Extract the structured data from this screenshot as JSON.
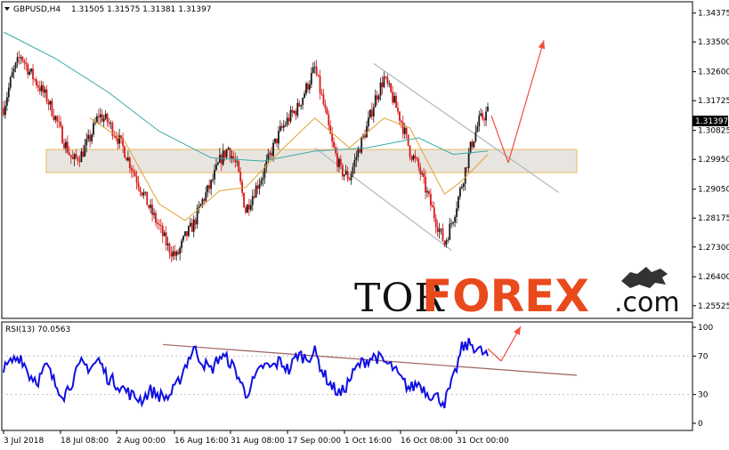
{
  "header": {
    "symbol": "GBPUSD,H4",
    "ohlc": "1.31505 1.31575 1.31381 1.31397",
    "arrow_icon": "triangle-down-icon"
  },
  "price_panel": {
    "current_price": "1.31397",
    "y_ticks": [
      "1.34375",
      "1.33500",
      "1.32600",
      "1.31725",
      "1.30825",
      "1.29950",
      "1.29050",
      "1.28175",
      "1.27300",
      "1.26400",
      "1.25525"
    ]
  },
  "rsi_panel": {
    "label": "RSI(13) 70.0563",
    "y_ticks": [
      "100",
      "70",
      "30",
      "0"
    ]
  },
  "x_axis": {
    "labels": [
      "3 Jul 2018",
      "18 Jul 08:00",
      "2 Aug 00:00",
      "16 Aug 16:00",
      "31 Aug 08:00",
      "17 Sep 00:00",
      "1 Oct 16:00",
      "16 Oct 08:00",
      "31 Oct 00:00"
    ]
  },
  "watermark": {
    "part1": "TOR",
    "part2": "FOREX",
    "part3": ".com"
  },
  "colors": {
    "candle_up": "#1a1a1a",
    "candle_down": "#d81818",
    "ma_fast": "#e0a030",
    "ma_slow": "#3aa9a9",
    "rsi": "#1010e0",
    "zone_fill": "#e4e1da",
    "zone_border": "#e8b860",
    "channel": "#aab8c4",
    "trend": "#a06060",
    "arrow": "#f05040",
    "grid": "#c0c0c0"
  },
  "chart_data": [
    {
      "type": "candlestick",
      "title": "GBPUSD,H4",
      "ylim": [
        1.2525,
        1.345
      ],
      "x_labels": [
        "3 Jul 2018",
        "18 Jul 08:00",
        "2 Aug 00:00",
        "16 Aug 16:00",
        "31 Aug 08:00",
        "17 Sep 00:00",
        "1 Oct 16:00",
        "16 Oct 08:00",
        "31 Oct 00:00"
      ],
      "last_close": 1.31397,
      "close_path": [
        {
          "x": 0,
          "y": 1.315
        },
        {
          "x": 5,
          "y": 1.325
        },
        {
          "x": 10,
          "y": 1.331
        },
        {
          "x": 15,
          "y": 1.326
        },
        {
          "x": 20,
          "y": 1.322
        },
        {
          "x": 25,
          "y": 1.318
        },
        {
          "x": 30,
          "y": 1.312
        },
        {
          "x": 35,
          "y": 1.305
        },
        {
          "x": 40,
          "y": 1.299
        },
        {
          "x": 45,
          "y": 1.301
        },
        {
          "x": 50,
          "y": 1.306
        },
        {
          "x": 55,
          "y": 1.313
        },
        {
          "x": 60,
          "y": 1.311
        },
        {
          "x": 65,
          "y": 1.307
        },
        {
          "x": 70,
          "y": 1.302
        },
        {
          "x": 75,
          "y": 1.296
        },
        {
          "x": 80,
          "y": 1.29
        },
        {
          "x": 85,
          "y": 1.284
        },
        {
          "x": 90,
          "y": 1.279
        },
        {
          "x": 95,
          "y": 1.273
        },
        {
          "x": 100,
          "y": 1.27
        },
        {
          "x": 105,
          "y": 1.276
        },
        {
          "x": 110,
          "y": 1.28
        },
        {
          "x": 115,
          "y": 1.287
        },
        {
          "x": 120,
          "y": 1.292
        },
        {
          "x": 125,
          "y": 1.299
        },
        {
          "x": 130,
          "y": 1.303
        },
        {
          "x": 135,
          "y": 1.297
        },
        {
          "x": 140,
          "y": 1.284
        },
        {
          "x": 145,
          "y": 1.29
        },
        {
          "x": 150,
          "y": 1.295
        },
        {
          "x": 155,
          "y": 1.302
        },
        {
          "x": 160,
          "y": 1.308
        },
        {
          "x": 165,
          "y": 1.312
        },
        {
          "x": 170,
          "y": 1.315
        },
        {
          "x": 175,
          "y": 1.321
        },
        {
          "x": 180,
          "y": 1.327
        },
        {
          "x": 185,
          "y": 1.316
        },
        {
          "x": 190,
          "y": 1.304
        },
        {
          "x": 195,
          "y": 1.296
        },
        {
          "x": 200,
          "y": 1.294
        },
        {
          "x": 205,
          "y": 1.302
        },
        {
          "x": 210,
          "y": 1.309
        },
        {
          "x": 215,
          "y": 1.318
        },
        {
          "x": 220,
          "y": 1.324
        },
        {
          "x": 225,
          "y": 1.318
        },
        {
          "x": 230,
          "y": 1.311
        },
        {
          "x": 235,
          "y": 1.302
        },
        {
          "x": 240,
          "y": 1.297
        },
        {
          "x": 245,
          "y": 1.289
        },
        {
          "x": 250,
          "y": 1.281
        },
        {
          "x": 255,
          "y": 1.274
        },
        {
          "x": 260,
          "y": 1.282
        },
        {
          "x": 265,
          "y": 1.292
        },
        {
          "x": 270,
          "y": 1.303
        },
        {
          "x": 275,
          "y": 1.311
        },
        {
          "x": 280,
          "y": 1.31397
        }
      ],
      "ma_fast_path": [
        {
          "x": 50,
          "y": 1.312
        },
        {
          "x": 70,
          "y": 1.305
        },
        {
          "x": 90,
          "y": 1.286
        },
        {
          "x": 105,
          "y": 1.281
        },
        {
          "x": 125,
          "y": 1.29
        },
        {
          "x": 140,
          "y": 1.291
        },
        {
          "x": 160,
          "y": 1.302
        },
        {
          "x": 180,
          "y": 1.312
        },
        {
          "x": 200,
          "y": 1.303
        },
        {
          "x": 220,
          "y": 1.312
        },
        {
          "x": 235,
          "y": 1.309
        },
        {
          "x": 255,
          "y": 1.289
        },
        {
          "x": 265,
          "y": 1.293
        },
        {
          "x": 280,
          "y": 1.301
        }
      ],
      "ma_slow_path": [
        {
          "x": 0,
          "y": 1.338
        },
        {
          "x": 30,
          "y": 1.33
        },
        {
          "x": 60,
          "y": 1.32
        },
        {
          "x": 90,
          "y": 1.308
        },
        {
          "x": 120,
          "y": 1.3
        },
        {
          "x": 150,
          "y": 1.299
        },
        {
          "x": 180,
          "y": 1.302
        },
        {
          "x": 210,
          "y": 1.303
        },
        {
          "x": 240,
          "y": 1.306
        },
        {
          "x": 260,
          "y": 1.301
        },
        {
          "x": 280,
          "y": 1.302
        }
      ],
      "support_zone": [
        1.2955,
        1.3025
      ],
      "series": [
        {
          "name": "",
          "kind": "moving-average-fast"
        },
        {
          "name": "",
          "kind": "moving-average-slow"
        }
      ]
    },
    {
      "type": "line",
      "title": "RSI(13) 70.0563",
      "ylim": [
        0,
        100
      ],
      "levels": [
        70,
        30
      ],
      "last_value": 70.0563,
      "values": [
        {
          "x": 0,
          "y": 55
        },
        {
          "x": 5,
          "y": 65
        },
        {
          "x": 10,
          "y": 70
        },
        {
          "x": 15,
          "y": 50
        },
        {
          "x": 20,
          "y": 45
        },
        {
          "x": 25,
          "y": 60
        },
        {
          "x": 30,
          "y": 40
        },
        {
          "x": 35,
          "y": 30
        },
        {
          "x": 40,
          "y": 45
        },
        {
          "x": 45,
          "y": 62
        },
        {
          "x": 50,
          "y": 58
        },
        {
          "x": 55,
          "y": 66
        },
        {
          "x": 60,
          "y": 48
        },
        {
          "x": 65,
          "y": 42
        },
        {
          "x": 70,
          "y": 35
        },
        {
          "x": 75,
          "y": 28
        },
        {
          "x": 80,
          "y": 25
        },
        {
          "x": 85,
          "y": 34
        },
        {
          "x": 90,
          "y": 29
        },
        {
          "x": 95,
          "y": 27
        },
        {
          "x": 100,
          "y": 38
        },
        {
          "x": 105,
          "y": 60
        },
        {
          "x": 110,
          "y": 78
        },
        {
          "x": 115,
          "y": 64
        },
        {
          "x": 120,
          "y": 55
        },
        {
          "x": 125,
          "y": 70
        },
        {
          "x": 130,
          "y": 66
        },
        {
          "x": 135,
          "y": 52
        },
        {
          "x": 140,
          "y": 30
        },
        {
          "x": 145,
          "y": 45
        },
        {
          "x": 150,
          "y": 60
        },
        {
          "x": 155,
          "y": 58
        },
        {
          "x": 160,
          "y": 65
        },
        {
          "x": 165,
          "y": 55
        },
        {
          "x": 170,
          "y": 72
        },
        {
          "x": 175,
          "y": 68
        },
        {
          "x": 180,
          "y": 74
        },
        {
          "x": 185,
          "y": 52
        },
        {
          "x": 190,
          "y": 38
        },
        {
          "x": 195,
          "y": 30
        },
        {
          "x": 200,
          "y": 45
        },
        {
          "x": 205,
          "y": 60
        },
        {
          "x": 210,
          "y": 66
        },
        {
          "x": 215,
          "y": 70
        },
        {
          "x": 220,
          "y": 64
        },
        {
          "x": 225,
          "y": 58
        },
        {
          "x": 230,
          "y": 45
        },
        {
          "x": 235,
          "y": 36
        },
        {
          "x": 240,
          "y": 42
        },
        {
          "x": 245,
          "y": 32
        },
        {
          "x": 250,
          "y": 28
        },
        {
          "x": 255,
          "y": 22
        },
        {
          "x": 260,
          "y": 45
        },
        {
          "x": 265,
          "y": 78
        },
        {
          "x": 270,
          "y": 83
        },
        {
          "x": 275,
          "y": 76
        },
        {
          "x": 280,
          "y": 70.0563
        }
      ]
    }
  ]
}
